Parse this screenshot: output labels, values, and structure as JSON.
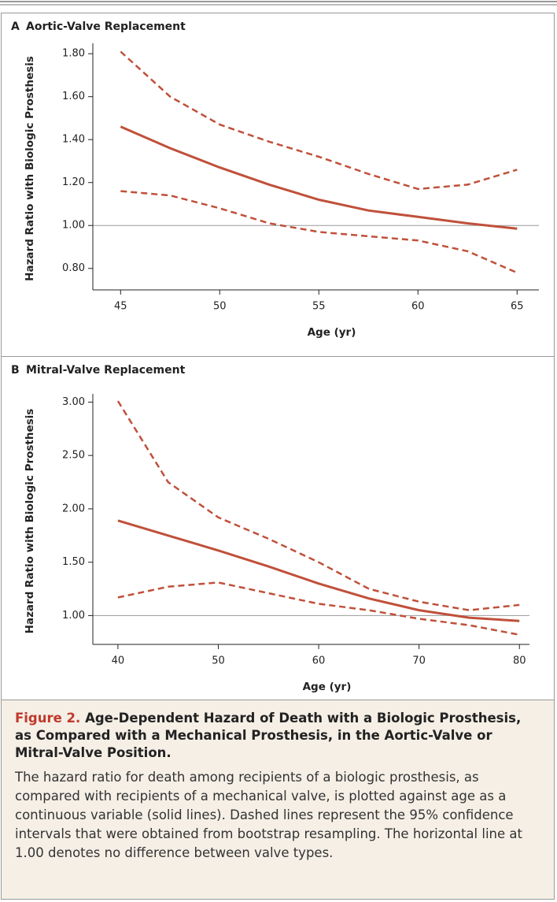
{
  "chart_data": [
    {
      "type": "line",
      "panel": "A",
      "title": "Aortic-Valve Replacement",
      "xlabel": "Age (yr)",
      "ylabel": "Hazard Ratio with Biologic Prosthesis",
      "x": [
        45,
        47.5,
        50,
        52.5,
        55,
        57.5,
        60,
        62.5,
        65
      ],
      "series": [
        {
          "color": "#c0503a",
          "dash": false,
          "values": [
            1.46,
            1.36,
            1.27,
            1.19,
            1.12,
            1.07,
            1.04,
            1.01,
            0.985
          ]
        },
        {
          "color": "#c0503a",
          "dash": true,
          "values": [
            1.81,
            1.6,
            1.47,
            1.39,
            1.32,
            1.24,
            1.17,
            1.19,
            1.26
          ]
        },
        {
          "color": "#c0503a",
          "dash": true,
          "values": [
            1.16,
            1.14,
            1.08,
            1.01,
            0.97,
            0.95,
            0.93,
            0.88,
            0.78
          ]
        }
      ],
      "xlim": [
        43.6,
        66.1
      ],
      "ylim": [
        0.7,
        1.83
      ],
      "xticks": [
        45,
        50,
        55,
        60,
        65
      ],
      "yticks": [
        {
          "value": 0.8,
          "label": "0.80"
        },
        {
          "value": 1,
          "label": "1.00"
        },
        {
          "value": 1.2,
          "label": "1.20"
        },
        {
          "value": 1.4,
          "label": "1.40"
        },
        {
          "value": 1.6,
          "label": "1.60"
        },
        {
          "value": 1.8,
          "label": "1.80"
        }
      ],
      "hline": 1
    },
    {
      "type": "line",
      "panel": "B",
      "title": "Mitral-Valve Replacement",
      "xlabel": "Age (yr)",
      "ylabel": "Hazard Ratio with Biologic Prosthesis",
      "x": [
        40,
        45,
        50,
        55,
        60,
        65,
        70,
        75,
        80
      ],
      "series": [
        {
          "color": "#c0503a",
          "dash": false,
          "values": [
            1.89,
            1.75,
            1.61,
            1.46,
            1.3,
            1.16,
            1.05,
            0.98,
            0.95
          ]
        },
        {
          "color": "#c0503a",
          "dash": true,
          "values": [
            3.01,
            2.25,
            1.92,
            1.72,
            1.5,
            1.25,
            1.13,
            1.05,
            1.1
          ]
        },
        {
          "color": "#c0503a",
          "dash": true,
          "values": [
            1.17,
            1.27,
            1.31,
            1.21,
            1.11,
            1.05,
            0.97,
            0.91,
            0.82
          ]
        }
      ],
      "xlim": [
        37.5,
        81
      ],
      "ylim": [
        0.73,
        3.04
      ],
      "xticks": [
        40,
        50,
        60,
        70,
        80
      ],
      "yticks": [
        {
          "value": 1,
          "label": "1.00"
        },
        {
          "value": 1.5,
          "label": "1.50"
        },
        {
          "value": 2,
          "label": "2.00"
        },
        {
          "value": 2.5,
          "label": "2.50"
        },
        {
          "value": 3,
          "label": "3.00"
        }
      ],
      "hline": 1
    }
  ],
  "caption": {
    "label": "Figure 2.",
    "title": "Age-Dependent Hazard of Death with a Biologic Prosthesis, as Compared with a Mechanical Prosthesis, in the Aortic-Valve or Mitral-Valve Position.",
    "text": "The hazard ratio for death among recipients of a biologic prosthesis, as compared with recipients of a mechanical valve, is plotted against age as a continuous variable (solid lines). Dashed lines represent the 95% confidence intervals that were obtained from bootstrap resampling. The horizontal line at 1.00 denotes no difference between valve types."
  }
}
